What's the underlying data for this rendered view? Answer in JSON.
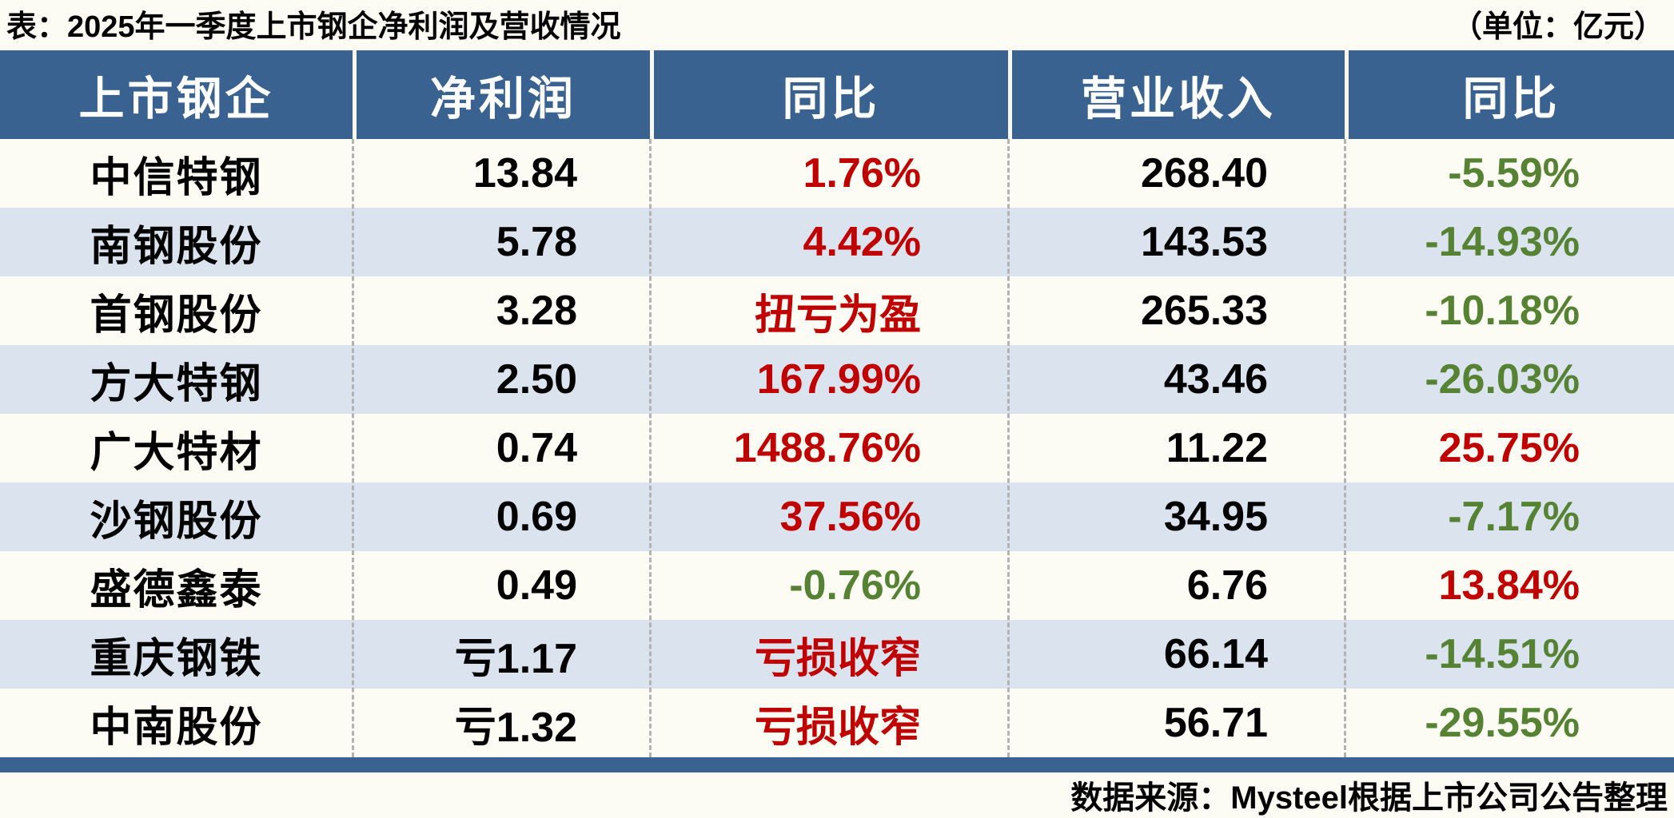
{
  "title": {
    "text": "表：2025年一季度上市钢企净利润及营收情况",
    "unit": "（单位：亿元）"
  },
  "colors": {
    "page_bg": "#FDFCF4",
    "header_bg": "#3A6290",
    "row_alt_bg": "#DBE3EF",
    "increase_red": "#C00000",
    "decrease_green": "#568234",
    "bottom_bar": "#3A6290"
  },
  "table": {
    "header": {
      "columns": [
        "上市钢企",
        "净利润",
        "同比",
        "营业收入",
        "同比"
      ]
    },
    "rows": [
      {
        "company": "中信特钢",
        "net_profit": "13.84",
        "net_profit_yoy": {
          "text": "1.76%",
          "color": "#C00000"
        },
        "revenue": "268.40",
        "revenue_yoy": {
          "text": "-5.59%",
          "color": "#568234"
        }
      },
      {
        "company": "南钢股份",
        "net_profit": "5.78",
        "net_profit_yoy": {
          "text": "4.42%",
          "color": "#C00000"
        },
        "revenue": "143.53",
        "revenue_yoy": {
          "text": "-14.93%",
          "color": "#568234"
        }
      },
      {
        "company": "首钢股份",
        "net_profit": "3.28",
        "net_profit_yoy": {
          "text": "扭亏为盈",
          "color": "#C00000"
        },
        "revenue": "265.33",
        "revenue_yoy": {
          "text": "-10.18%",
          "color": "#568234"
        }
      },
      {
        "company": "方大特钢",
        "net_profit": "2.50",
        "net_profit_yoy": {
          "text": "167.99%",
          "color": "#C00000"
        },
        "revenue": "43.46",
        "revenue_yoy": {
          "text": "-26.03%",
          "color": "#568234"
        }
      },
      {
        "company": "广大特材",
        "net_profit": "0.74",
        "net_profit_yoy": {
          "text": "1488.76%",
          "color": "#C00000"
        },
        "revenue": "11.22",
        "revenue_yoy": {
          "text": "25.75%",
          "color": "#C00000"
        }
      },
      {
        "company": "沙钢股份",
        "net_profit": "0.69",
        "net_profit_yoy": {
          "text": "37.56%",
          "color": "#C00000"
        },
        "revenue": "34.95",
        "revenue_yoy": {
          "text": "-7.17%",
          "color": "#568234"
        }
      },
      {
        "company": "盛德鑫泰",
        "net_profit": "0.49",
        "net_profit_yoy": {
          "text": "-0.76%",
          "color": "#568234"
        },
        "revenue": "6.76",
        "revenue_yoy": {
          "text": "13.84%",
          "color": "#C00000"
        }
      },
      {
        "company": "重庆钢铁",
        "net_profit": "亏1.17",
        "net_profit_yoy": {
          "text": "亏损收窄",
          "color": "#C00000"
        },
        "revenue": "66.14",
        "revenue_yoy": {
          "text": "-14.51%",
          "color": "#568234"
        }
      },
      {
        "company": "中南股份",
        "net_profit": "亏1.32",
        "net_profit_yoy": {
          "text": "亏损收窄",
          "color": "#C00000"
        },
        "revenue": "56.71",
        "revenue_yoy": {
          "text": "-29.55%",
          "color": "#568234"
        }
      }
    ]
  },
  "footer": {
    "source": "数据来源：Mysteel根据上市公司公告整理"
  },
  "chart_data": {
    "type": "table",
    "title": "表：2025年一季度上市钢企净利润及营收情况",
    "unit": "亿元",
    "columns": [
      "上市钢企",
      "净利润",
      "同比",
      "营业收入",
      "同比"
    ],
    "rows": [
      [
        "中信特钢",
        "13.84",
        "1.76%",
        "268.40",
        "-5.59%"
      ],
      [
        "南钢股份",
        "5.78",
        "4.42%",
        "143.53",
        "-14.93%"
      ],
      [
        "首钢股份",
        "3.28",
        "扭亏为盈",
        "265.33",
        "-10.18%"
      ],
      [
        "方大特钢",
        "2.50",
        "167.99%",
        "43.46",
        "-26.03%"
      ],
      [
        "广大特材",
        "0.74",
        "1488.76%",
        "11.22",
        "25.75%"
      ],
      [
        "沙钢股份",
        "0.69",
        "37.56%",
        "34.95",
        "-7.17%"
      ],
      [
        "盛德鑫泰",
        "0.49",
        "-0.76%",
        "6.76",
        "13.84%"
      ],
      [
        "重庆钢铁",
        "亏1.17",
        "亏损收窄",
        "66.14",
        "-14.51%"
      ],
      [
        "中南股份",
        "亏1.32",
        "亏损收窄",
        "56.71",
        "-29.55%"
      ]
    ],
    "source": "数据来源：Mysteel根据上市公司公告整理"
  }
}
